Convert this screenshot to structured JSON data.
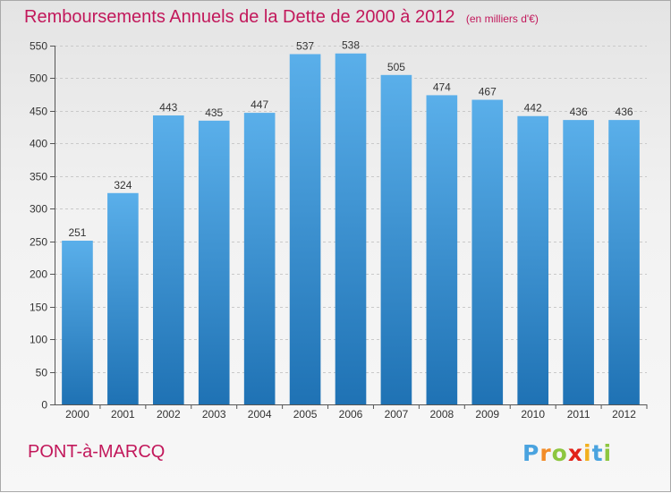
{
  "title": "Remboursements Annuels de la Dette de 2000 à 2012",
  "subtitle": "(en milliers d'€)",
  "town": "PONT-à-MARCQ",
  "brand": {
    "letters": [
      "P",
      "r",
      "o",
      "x",
      "i",
      "t",
      "i"
    ],
    "colors": [
      "#4aa3df",
      "#f28c28",
      "#8dc63f",
      "#e2231a",
      "#f2b01e",
      "#4aa3df",
      "#8dc63f"
    ]
  },
  "colors": {
    "bar_top": "#5aafea",
    "bar_bottom": "#1f72b4",
    "title": "#c2185b"
  },
  "chart_data": {
    "type": "bar",
    "categories": [
      "2000",
      "2001",
      "2002",
      "2003",
      "2004",
      "2005",
      "2006",
      "2007",
      "2008",
      "2009",
      "2010",
      "2011",
      "2012"
    ],
    "values": [
      251,
      324,
      443,
      435,
      447,
      537,
      538,
      505,
      474,
      467,
      442,
      436,
      436
    ],
    "ylim": [
      0,
      550
    ],
    "yticks": [
      0,
      50,
      100,
      150,
      200,
      250,
      300,
      350,
      400,
      450,
      500,
      550
    ],
    "grid": true
  }
}
